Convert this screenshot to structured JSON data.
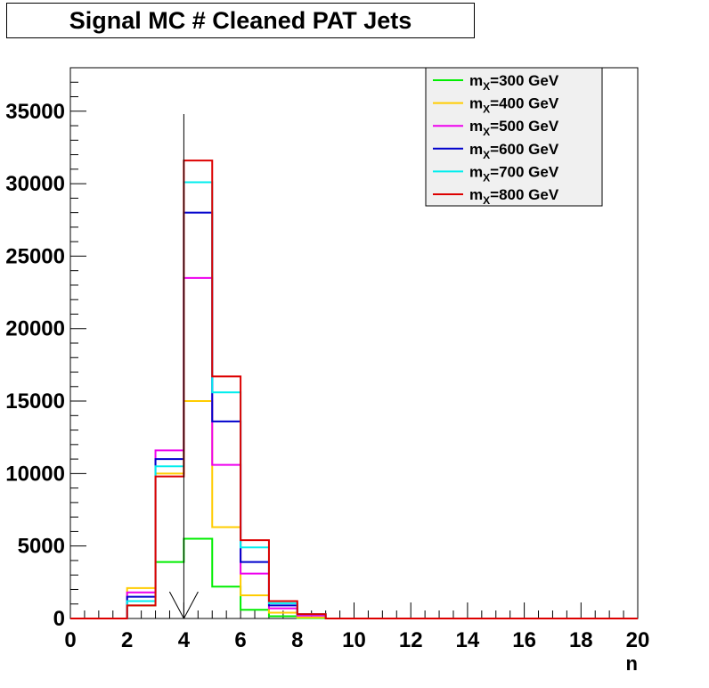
{
  "chart_data": {
    "type": "line",
    "title": "Signal MC # Cleaned PAT Jets",
    "xlabel": "n",
    "ylabel": "",
    "xlim": [
      0,
      20
    ],
    "ylim": [
      0,
      38000
    ],
    "x_ticks": [
      "0",
      "2",
      "4",
      "6",
      "8",
      "10",
      "12",
      "14",
      "16",
      "18",
      "20"
    ],
    "y_ticks": [
      "0",
      "5000",
      "10000",
      "15000",
      "20000",
      "25000",
      "30000",
      "35000"
    ],
    "bin_edges": [
      0,
      1,
      2,
      3,
      4,
      5,
      6,
      7,
      8,
      9,
      10,
      11,
      12,
      13,
      14,
      15,
      16,
      17,
      18,
      19,
      20
    ],
    "legend_position": "top-right",
    "series": [
      {
        "name": "m_X=300 GeV",
        "label_main": "m",
        "label_sub": "X",
        "label_rest": "=300 GeV",
        "color": "#00ee00",
        "values": [
          0,
          0,
          900,
          3900,
          5500,
          2200,
          600,
          150,
          30,
          0,
          0,
          0,
          0,
          0,
          0,
          0,
          0,
          0,
          0,
          0
        ]
      },
      {
        "name": "m_X=400 GeV",
        "label_main": "m",
        "label_sub": "X",
        "label_rest": "=400 GeV",
        "color": "#ffcc00",
        "values": [
          0,
          0,
          2100,
          10000,
          15000,
          6300,
          1600,
          400,
          80,
          0,
          0,
          0,
          0,
          0,
          0,
          0,
          0,
          0,
          0,
          0
        ]
      },
      {
        "name": "m_X=500 GeV",
        "label_main": "m",
        "label_sub": "X",
        "label_rest": "=500 GeV",
        "color": "#ee00ee",
        "values": [
          0,
          0,
          1800,
          11600,
          23500,
          10600,
          3100,
          700,
          200,
          0,
          0,
          0,
          0,
          0,
          0,
          0,
          0,
          0,
          0,
          0
        ]
      },
      {
        "name": "m_X=600 GeV",
        "label_main": "m",
        "label_sub": "X",
        "label_rest": "=600 GeV",
        "color": "#0000cc",
        "values": [
          0,
          0,
          1500,
          11000,
          28000,
          13600,
          3900,
          900,
          300,
          0,
          0,
          0,
          0,
          0,
          0,
          0,
          0,
          0,
          0,
          0
        ]
      },
      {
        "name": "m_X=700 GeV",
        "label_main": "m",
        "label_sub": "X",
        "label_rest": "=700 GeV",
        "color": "#00eeee",
        "values": [
          0,
          0,
          1200,
          10500,
          30100,
          15600,
          4900,
          1050,
          300,
          0,
          0,
          0,
          0,
          0,
          0,
          0,
          0,
          0,
          0,
          0
        ]
      },
      {
        "name": "m_X=800 GeV",
        "label_main": "m",
        "label_sub": "X",
        "label_rest": "=800 GeV",
        "color": "#dd0000",
        "values": [
          0,
          0,
          900,
          9800,
          31600,
          16700,
          5400,
          1200,
          300,
          0,
          0,
          0,
          0,
          0,
          0,
          0,
          0,
          0,
          0,
          0
        ]
      }
    ],
    "annotation": {
      "type": "arrow",
      "x": 4,
      "y_top": 34800,
      "y_bottom": 0
    }
  }
}
